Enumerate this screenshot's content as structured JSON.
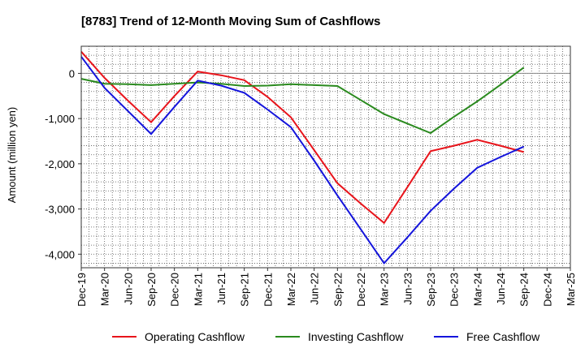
{
  "chart_data": {
    "type": "line",
    "title": "[8783]  Trend of 12-Month Moving Sum of Cashflows",
    "xlabel": "",
    "ylabel": "Amount (million yen)",
    "categories": [
      "Dec-19",
      "Mar-20",
      "Jun-20",
      "Sep-20",
      "Dec-20",
      "Mar-21",
      "Jun-21",
      "Sep-21",
      "Dec-21",
      "Mar-22",
      "Jun-22",
      "Sep-22",
      "Dec-22",
      "Mar-23",
      "Jun-23",
      "Sep-23",
      "Dec-23",
      "Mar-24",
      "Jun-24",
      "Sep-24",
      "Dec-24",
      "Mar-25"
    ],
    "ylim": [
      -4300,
      600
    ],
    "yticks": [
      0,
      -1000,
      -2000,
      -3000,
      -4000
    ],
    "ytick_labels": [
      "0",
      "-1,000",
      "-2,000",
      "-3,000",
      "-4,000"
    ],
    "grid": true,
    "legend": "bottom",
    "series": [
      {
        "name": "Operating Cashflow",
        "color": "#e8141b",
        "values": [
          480,
          -100,
          -600,
          -1080,
          -500,
          40,
          -40,
          -150,
          -520,
          -970,
          -1700,
          -2430,
          -2880,
          -3310,
          -2520,
          -1720,
          -1600,
          -1470,
          -1600,
          -1740,
          null,
          null
        ]
      },
      {
        "name": "Investing Cashflow",
        "color": "#2a8a1e",
        "values": [
          -120,
          -230,
          -240,
          -260,
          -230,
          -200,
          -230,
          -280,
          -270,
          -240,
          -260,
          -280,
          -590,
          -900,
          -1110,
          -1320,
          -960,
          -620,
          -250,
          130,
          null,
          null
        ]
      },
      {
        "name": "Free Cashflow",
        "color": "#1414dc",
        "values": [
          370,
          -320,
          -830,
          -1340,
          -740,
          -160,
          -270,
          -430,
          -800,
          -1190,
          -1930,
          -2700,
          -3450,
          -4200,
          -3630,
          -3040,
          -2550,
          -2090,
          -1850,
          -1620,
          null,
          null
        ]
      }
    ]
  }
}
